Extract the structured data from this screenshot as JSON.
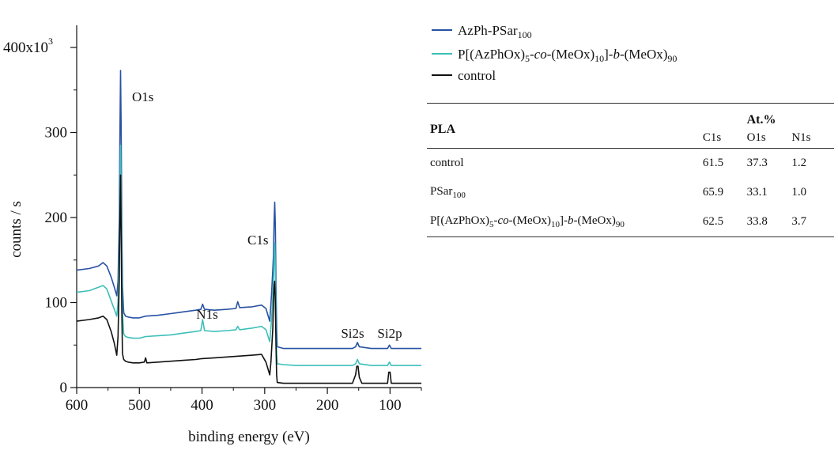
{
  "chart_data": {
    "type": "line",
    "xlabel": "binding energy (eV)",
    "ylabel": "counts / s",
    "y_multiplier_label": "x10",
    "y_multiplier_exp": "3",
    "xlim": [
      600,
      50
    ],
    "ylim": [
      0,
      400
    ],
    "x_reversed": true,
    "xticks": [
      600,
      500,
      400,
      300,
      200,
      100
    ],
    "yticks": [
      0,
      100,
      200,
      300,
      400
    ],
    "ytick_labels": [
      "0",
      "100",
      "200",
      "300",
      "400"
    ],
    "grid": false,
    "legend_position": "top-right, outside plot",
    "series": [
      {
        "name": "AzPh-PSar100",
        "color": "#2952a3",
        "points": [
          [
            600,
            138
          ],
          [
            580,
            140
          ],
          [
            565,
            143
          ],
          [
            558,
            147
          ],
          [
            552,
            143
          ],
          [
            545,
            130
          ],
          [
            540,
            118
          ],
          [
            536,
            108
          ],
          [
            534,
            125
          ],
          [
            532,
            200
          ],
          [
            531,
            300
          ],
          [
            530,
            373
          ],
          [
            529,
            300
          ],
          [
            528,
            180
          ],
          [
            527,
            120
          ],
          [
            525,
            88
          ],
          [
            522,
            84
          ],
          [
            518,
            83
          ],
          [
            510,
            82
          ],
          [
            500,
            82
          ],
          [
            490,
            84
          ],
          [
            470,
            85
          ],
          [
            450,
            87
          ],
          [
            440,
            88
          ],
          [
            430,
            89
          ],
          [
            410,
            91
          ],
          [
            402,
            92
          ],
          [
            399,
            98
          ],
          [
            396,
            92
          ],
          [
            380,
            91
          ],
          [
            360,
            92
          ],
          [
            346,
            93
          ],
          [
            343,
            101
          ],
          [
            340,
            94
          ],
          [
            320,
            95
          ],
          [
            305,
            97
          ],
          [
            298,
            93
          ],
          [
            292,
            78
          ],
          [
            289,
            110
          ],
          [
            286,
            155
          ],
          [
            285,
            195
          ],
          [
            284,
            218
          ],
          [
            283,
            190
          ],
          [
            282,
            120
          ],
          [
            281,
            70
          ],
          [
            280,
            48
          ],
          [
            270,
            46
          ],
          [
            250,
            46
          ],
          [
            200,
            46
          ],
          [
            160,
            46
          ],
          [
            155,
            48
          ],
          [
            152,
            53
          ],
          [
            149,
            48
          ],
          [
            130,
            46
          ],
          [
            104,
            46
          ],
          [
            101,
            50
          ],
          [
            98,
            46
          ],
          [
            50,
            46
          ]
        ]
      },
      {
        "name": "P[(AzPhOx)5-co-(MeOx)10]-b-(MeOx)90",
        "color": "#3dbfb9",
        "points": [
          [
            600,
            112
          ],
          [
            580,
            114
          ],
          [
            565,
            118
          ],
          [
            558,
            120
          ],
          [
            552,
            116
          ],
          [
            545,
            102
          ],
          [
            540,
            92
          ],
          [
            536,
            84
          ],
          [
            534,
            100
          ],
          [
            532,
            160
          ],
          [
            531,
            230
          ],
          [
            530,
            285
          ],
          [
            529,
            220
          ],
          [
            528,
            140
          ],
          [
            527,
            90
          ],
          [
            525,
            63
          ],
          [
            522,
            60
          ],
          [
            518,
            59
          ],
          [
            510,
            58
          ],
          [
            500,
            58
          ],
          [
            490,
            60
          ],
          [
            470,
            61
          ],
          [
            450,
            62
          ],
          [
            430,
            64
          ],
          [
            410,
            66
          ],
          [
            402,
            67
          ],
          [
            399,
            80
          ],
          [
            396,
            67
          ],
          [
            380,
            66
          ],
          [
            360,
            67
          ],
          [
            346,
            68
          ],
          [
            343,
            72
          ],
          [
            340,
            68
          ],
          [
            320,
            70
          ],
          [
            305,
            72
          ],
          [
            298,
            68
          ],
          [
            292,
            54
          ],
          [
            289,
            80
          ],
          [
            286,
            120
          ],
          [
            285,
            150
          ],
          [
            284,
            170
          ],
          [
            283,
            140
          ],
          [
            282,
            80
          ],
          [
            281,
            40
          ],
          [
            280,
            28
          ],
          [
            270,
            27
          ],
          [
            250,
            26
          ],
          [
            200,
            26
          ],
          [
            160,
            26
          ],
          [
            155,
            28
          ],
          [
            152,
            33
          ],
          [
            149,
            28
          ],
          [
            130,
            26
          ],
          [
            104,
            26
          ],
          [
            101,
            30
          ],
          [
            98,
            26
          ],
          [
            50,
            26
          ]
        ]
      },
      {
        "name": "control",
        "color": "#111111",
        "points": [
          [
            600,
            78
          ],
          [
            580,
            80
          ],
          [
            565,
            82
          ],
          [
            558,
            84
          ],
          [
            552,
            80
          ],
          [
            545,
            66
          ],
          [
            540,
            52
          ],
          [
            536,
            38
          ],
          [
            534,
            60
          ],
          [
            532,
            130
          ],
          [
            531,
            200
          ],
          [
            530,
            250
          ],
          [
            529,
            180
          ],
          [
            528,
            90
          ],
          [
            527,
            40
          ],
          [
            525,
            33
          ],
          [
            522,
            31
          ],
          [
            518,
            30
          ],
          [
            510,
            29
          ],
          [
            500,
            29
          ],
          [
            492,
            30
          ],
          [
            490,
            35
          ],
          [
            488,
            29
          ],
          [
            470,
            30
          ],
          [
            450,
            31
          ],
          [
            430,
            32
          ],
          [
            410,
            33
          ],
          [
            400,
            34
          ],
          [
            380,
            35
          ],
          [
            360,
            36
          ],
          [
            340,
            37
          ],
          [
            320,
            38
          ],
          [
            305,
            39
          ],
          [
            298,
            30
          ],
          [
            294,
            20
          ],
          [
            292,
            15
          ],
          [
            290,
            30
          ],
          [
            287,
            70
          ],
          [
            286,
            100
          ],
          [
            285,
            120
          ],
          [
            284,
            125
          ],
          [
            283,
            100
          ],
          [
            282,
            50
          ],
          [
            281,
            15
          ],
          [
            280,
            6
          ],
          [
            270,
            5
          ],
          [
            250,
            5
          ],
          [
            200,
            5
          ],
          [
            160,
            5
          ],
          [
            155,
            15
          ],
          [
            153,
            25
          ],
          [
            151,
            25
          ],
          [
            149,
            12
          ],
          [
            145,
            5
          ],
          [
            110,
            5
          ],
          [
            104,
            5
          ],
          [
            102,
            18
          ],
          [
            100,
            18
          ],
          [
            98,
            5
          ],
          [
            50,
            5
          ]
        ]
      }
    ],
    "peak_labels": [
      {
        "text": "O1s",
        "x": 530
      },
      {
        "text": "C1s",
        "x": 284
      },
      {
        "text": "N1s",
        "x": 399
      },
      {
        "text": "Si2s",
        "x": 153
      },
      {
        "text": "Si2p",
        "x": 101
      }
    ]
  },
  "legend": [
    {
      "label_main": "AzPh-PSar",
      "label_sub": "100",
      "color": "#2952a3"
    },
    {
      "label_main": "P[(AzPhOx)5-co-(MeOx)10]-b-(MeOx)90",
      "color": "#3dbfb9"
    },
    {
      "label_main": "control",
      "color": "#111111"
    }
  ],
  "table": {
    "row_header": "PLA",
    "group_header": "At.%",
    "columns": [
      "C1s",
      "O1s",
      "N1s"
    ],
    "rows": [
      {
        "label": "control",
        "values": [
          "61.5",
          "37.3",
          "1.2"
        ]
      },
      {
        "label": "PSar100",
        "values": [
          "65.9",
          "33.1",
          "1.0"
        ]
      },
      {
        "label": "P[(AzPhOx)5-co-(MeOx)10]-b-(MeOx)90",
        "values": [
          "62.5",
          "33.8",
          "3.7"
        ]
      }
    ]
  }
}
